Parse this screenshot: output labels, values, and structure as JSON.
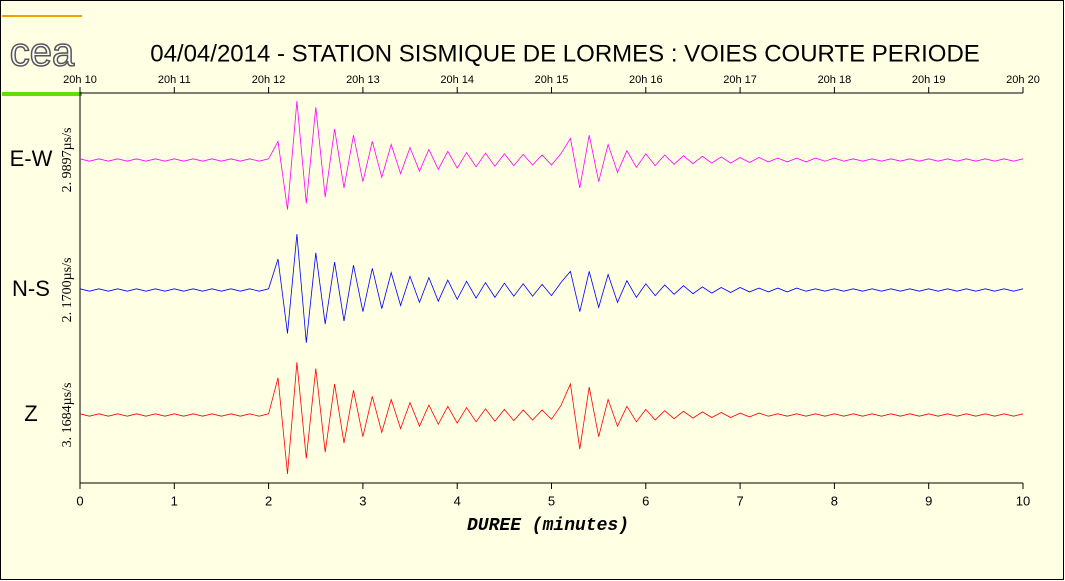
{
  "chart_data": {
    "type": "line",
    "logo": "cea",
    "title": "04/04/2014  -  STATION SISMIQUE DE LORMES : VOIES COURTE PERIODE",
    "xlabel": "DUREE (minutes)",
    "xlim": [
      0,
      10
    ],
    "xticks": [
      0,
      1,
      2,
      3,
      4,
      5,
      6,
      7,
      8,
      9,
      10
    ],
    "top_xticks": [
      {
        "value": 0,
        "label": "20h 10"
      },
      {
        "value": 1,
        "label": "20h 11"
      },
      {
        "value": 2,
        "label": "20h 12"
      },
      {
        "value": 3,
        "label": "20h 13"
      },
      {
        "value": 4,
        "label": "20h 14"
      },
      {
        "value": 5,
        "label": "20h 15"
      },
      {
        "value": 6,
        "label": "20h 16"
      },
      {
        "value": 7,
        "label": "20h 17"
      },
      {
        "value": 8,
        "label": "20h 18"
      },
      {
        "value": 9,
        "label": "20h 19"
      },
      {
        "value": 10,
        "label": "20h 20"
      }
    ],
    "ylim": [
      -1,
      1
    ],
    "x": [
      0,
      0.1,
      0.2,
      0.3,
      0.4,
      0.5,
      0.6,
      0.7,
      0.8,
      0.9,
      1,
      1.1,
      1.2,
      1.3,
      1.4,
      1.5,
      1.6,
      1.7,
      1.8,
      1.9,
      2,
      2.1,
      2.2,
      2.3,
      2.4,
      2.5,
      2.6,
      2.7,
      2.8,
      2.9,
      3,
      3.1,
      3.2,
      3.3,
      3.4,
      3.5,
      3.6,
      3.7,
      3.8,
      3.9,
      4,
      4.1,
      4.2,
      4.3,
      4.4,
      4.5,
      4.6,
      4.7,
      4.8,
      4.9,
      5,
      5.1,
      5.2,
      5.3,
      5.4,
      5.5,
      5.6,
      5.7,
      5.8,
      5.9,
      6,
      6.1,
      6.2,
      6.3,
      6.4,
      6.5,
      6.6,
      6.7,
      6.8,
      6.9,
      7,
      7.1,
      7.2,
      7.3,
      7.4,
      7.5,
      7.6,
      7.7,
      7.8,
      7.9,
      8,
      8.1,
      8.2,
      8.3,
      8.4,
      8.5,
      8.6,
      8.7,
      8.8,
      8.9,
      9,
      9.1,
      9.2,
      9.3,
      9.4,
      9.5,
      9.6,
      9.7,
      9.8,
      9.9,
      10
    ],
    "series": [
      {
        "name": "E-W",
        "color": "#ff00ff",
        "scale_label": "2. 9897µs/s",
        "values": [
          0.02,
          -0.02,
          0.02,
          -0.02,
          0.02,
          -0.02,
          0.02,
          -0.02,
          0.02,
          -0.02,
          0.02,
          -0.02,
          0.02,
          -0.02,
          0.02,
          -0.02,
          0.02,
          -0.02,
          0.02,
          -0.02,
          0.02,
          0.3,
          -0.8,
          0.95,
          -0.7,
          0.85,
          -0.6,
          0.5,
          -0.45,
          0.4,
          -0.35,
          0.3,
          -0.28,
          0.25,
          -0.22,
          0.2,
          -0.18,
          0.17,
          -0.15,
          0.14,
          -0.13,
          0.12,
          -0.11,
          0.11,
          -0.1,
          0.1,
          -0.09,
          0.09,
          -0.08,
          0.08,
          -0.08,
          0.1,
          0.35,
          -0.45,
          0.4,
          -0.35,
          0.25,
          -0.2,
          0.15,
          -0.12,
          0.1,
          -0.09,
          0.08,
          -0.07,
          0.07,
          -0.06,
          0.06,
          -0.05,
          0.05,
          -0.05,
          0.04,
          -0.04,
          0.04,
          -0.03,
          0.03,
          -0.03,
          0.03,
          -0.03,
          0.03,
          -0.02,
          0.03,
          -0.02,
          0.02,
          -0.02,
          0.02,
          -0.02,
          0.02,
          -0.02,
          0.02,
          -0.02,
          0.02,
          -0.02,
          0.02,
          -0.02,
          0.02,
          -0.02,
          0.02,
          -0.02,
          0.02,
          -0.02,
          0.02
        ]
      },
      {
        "name": "N-S",
        "color": "#0000ff",
        "scale_label": "2. 1700µs/s",
        "values": [
          0.02,
          -0.02,
          0.02,
          -0.02,
          0.02,
          -0.02,
          0.02,
          -0.02,
          0.02,
          -0.02,
          0.02,
          -0.02,
          0.02,
          -0.02,
          0.02,
          -0.02,
          0.02,
          -0.02,
          0.02,
          -0.02,
          0.02,
          0.5,
          -0.7,
          0.9,
          -0.85,
          0.6,
          -0.55,
          0.45,
          -0.5,
          0.4,
          -0.35,
          0.35,
          -0.3,
          0.28,
          -0.25,
          0.22,
          -0.2,
          0.2,
          -0.18,
          0.16,
          -0.15,
          0.14,
          -0.13,
          0.12,
          -0.12,
          0.11,
          -0.1,
          0.1,
          -0.1,
          0.09,
          -0.09,
          0.12,
          0.3,
          -0.35,
          0.3,
          -0.28,
          0.25,
          -0.2,
          0.15,
          -0.12,
          0.1,
          -0.09,
          0.08,
          -0.07,
          0.07,
          -0.06,
          0.05,
          -0.05,
          0.04,
          -0.04,
          0.04,
          -0.03,
          0.03,
          -0.03,
          0.03,
          -0.03,
          0.03,
          -0.02,
          0.02,
          -0.02,
          0.02,
          -0.02,
          0.02,
          -0.02,
          0.02,
          -0.02,
          0.02,
          -0.02,
          0.02,
          -0.02,
          0.02,
          -0.02,
          0.02,
          -0.02,
          0.02,
          -0.02,
          0.02,
          -0.02,
          0.02,
          -0.02,
          0.02
        ]
      },
      {
        "name": "Z",
        "color": "#ff0000",
        "scale_label": "3. 1684µs/s",
        "values": [
          0.02,
          -0.02,
          0.02,
          -0.02,
          0.02,
          -0.02,
          0.02,
          -0.02,
          0.02,
          -0.02,
          0.02,
          -0.02,
          0.02,
          -0.02,
          0.02,
          -0.02,
          0.02,
          -0.02,
          0.02,
          -0.02,
          0.02,
          0.6,
          -0.95,
          0.85,
          -0.7,
          0.75,
          -0.6,
          0.5,
          -0.45,
          0.4,
          -0.35,
          0.3,
          -0.28,
          0.25,
          -0.22,
          0.2,
          -0.18,
          0.16,
          -0.15,
          0.14,
          -0.13,
          0.12,
          -0.11,
          0.1,
          -0.1,
          0.09,
          -0.09,
          0.08,
          -0.08,
          0.08,
          -0.07,
          0.15,
          0.5,
          -0.55,
          0.45,
          -0.35,
          0.25,
          -0.18,
          0.14,
          -0.11,
          0.09,
          -0.08,
          0.07,
          -0.06,
          0.06,
          -0.05,
          0.05,
          -0.04,
          0.04,
          -0.04,
          0.03,
          -0.03,
          0.03,
          -0.02,
          0.02,
          -0.02,
          0.02,
          -0.02,
          0.02,
          -0.02,
          0.02,
          -0.02,
          0.02,
          -0.02,
          0.02,
          -0.02,
          0.02,
          -0.02,
          0.02,
          -0.02,
          0.02,
          -0.02,
          0.02,
          -0.02,
          0.02,
          -0.02,
          0.02,
          -0.02,
          0.02,
          -0.02,
          0.02
        ]
      }
    ]
  }
}
